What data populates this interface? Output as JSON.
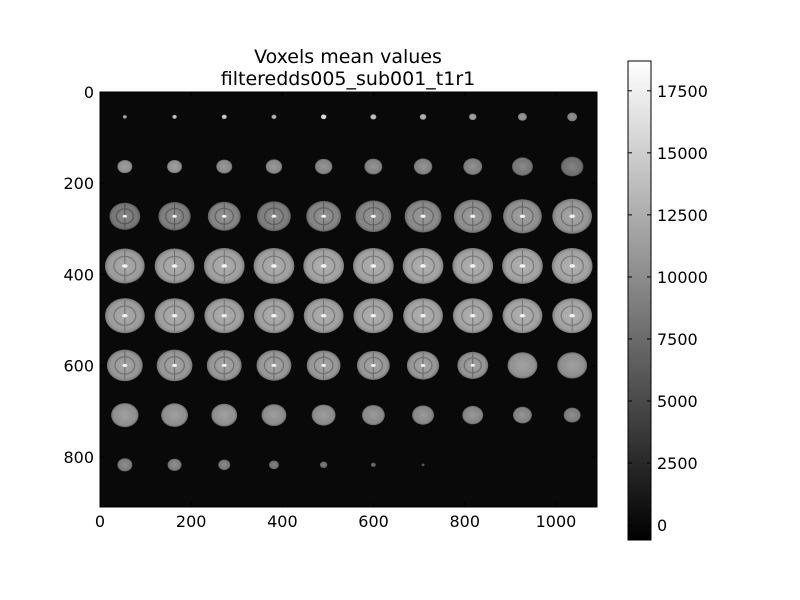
{
  "chart_data": {
    "type": "heatmap",
    "title": "Voxels mean values",
    "subtitle": "filteredds005_sub001_t1r1",
    "xlabel": "",
    "ylabel": "",
    "xlim": [
      0,
      1090
    ],
    "ylim": [
      910,
      0
    ],
    "x_ticks": [
      "0",
      "200",
      "400",
      "600",
      "800",
      "1000"
    ],
    "x_tick_values": [
      0,
      200,
      400,
      600,
      800,
      1000
    ],
    "y_ticks": [
      "0",
      "200",
      "400",
      "600",
      "800"
    ],
    "y_tick_values": [
      0,
      200,
      400,
      600,
      800
    ],
    "grid": false,
    "colormap": "gray",
    "colorbar": {
      "min": -600,
      "max": 18700,
      "ticks": [
        "0",
        "2500",
        "5000",
        "7500",
        "10000",
        "12500",
        "15000",
        "17500"
      ],
      "tick_values": [
        0,
        2500,
        5000,
        7500,
        10000,
        12500,
        15000,
        17500
      ]
    },
    "mosaic": {
      "columns": 10,
      "rows": 8,
      "tile_width": 109,
      "tile_height": 109,
      "background_value": 100,
      "slices": [
        {
          "row": 0,
          "sizes": [
            0.08,
            0.09,
            0.1,
            0.1,
            0.11,
            0.12,
            0.13,
            0.15,
            0.18,
            0.2
          ],
          "values": [
            11000,
            13500,
            14000,
            12000,
            15500,
            13000,
            12000,
            10500,
            9500,
            9000
          ]
        },
        {
          "row": 1,
          "sizes": [
            0.3,
            0.3,
            0.32,
            0.33,
            0.35,
            0.36,
            0.37,
            0.38,
            0.42,
            0.45
          ],
          "values": [
            10000,
            10000,
            9500,
            9500,
            9200,
            9000,
            9000,
            8800,
            8000,
            7500
          ]
        },
        {
          "row": 2,
          "sizes": [
            0.62,
            0.65,
            0.66,
            0.68,
            0.7,
            0.72,
            0.74,
            0.76,
            0.78,
            0.8
          ],
          "values": [
            8000,
            8500,
            9000,
            8500,
            9000,
            9200,
            9500,
            9800,
            10000,
            10500
          ]
        },
        {
          "row": 3,
          "sizes": [
            0.8,
            0.8,
            0.82,
            0.82,
            0.82,
            0.82,
            0.82,
            0.82,
            0.82,
            0.82
          ],
          "values": [
            11000,
            11200,
            11300,
            11300,
            11400,
            11400,
            11500,
            11500,
            11500,
            11500
          ]
        },
        {
          "row": 4,
          "sizes": [
            0.8,
            0.8,
            0.8,
            0.8,
            0.8,
            0.8,
            0.8,
            0.8,
            0.8,
            0.8
          ],
          "values": [
            11000,
            11200,
            11300,
            11300,
            11300,
            11400,
            11500,
            11500,
            11500,
            11500
          ]
        },
        {
          "row": 5,
          "sizes": [
            0.72,
            0.72,
            0.7,
            0.7,
            0.68,
            0.66,
            0.65,
            0.62,
            0.6,
            0.6
          ],
          "values": [
            10500,
            10500,
            10500,
            10500,
            10500,
            10500,
            10500,
            10300,
            10200,
            10000
          ]
        },
        {
          "row": 6,
          "sizes": [
            0.55,
            0.54,
            0.52,
            0.5,
            0.48,
            0.46,
            0.44,
            0.42,
            0.38,
            0.34
          ],
          "values": [
            10000,
            10000,
            10000,
            9800,
            9800,
            9500,
            9500,
            9300,
            9000,
            8500
          ]
        },
        {
          "row": 7,
          "sizes": [
            0.3,
            0.28,
            0.24,
            0.2,
            0.15,
            0.1,
            0.06,
            0,
            0,
            0
          ],
          "values": [
            8500,
            8500,
            8000,
            7500,
            7000,
            6000,
            5000,
            0,
            0,
            0
          ]
        }
      ]
    }
  }
}
